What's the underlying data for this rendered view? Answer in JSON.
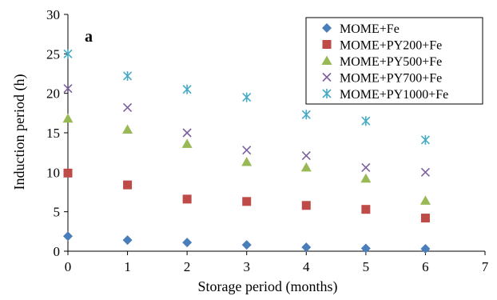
{
  "chart_data": {
    "type": "scatter",
    "panel_label": "a",
    "xlabel": "Storage period (months)",
    "ylabel": "Induction period (h)",
    "xlim": [
      0,
      7
    ],
    "ylim": [
      0,
      30
    ],
    "x_ticks": [
      0,
      1,
      2,
      3,
      4,
      5,
      6,
      7
    ],
    "y_ticks": [
      0,
      5,
      10,
      15,
      20,
      25,
      30
    ],
    "grid": false,
    "legend_position": "top-right",
    "x": [
      0,
      1,
      2,
      3,
      4,
      5,
      6
    ],
    "series": [
      {
        "name": "MOME+Fe",
        "marker": "diamond",
        "color": "#4a7ebb",
        "values": [
          1.9,
          1.4,
          1.1,
          0.8,
          0.5,
          0.35,
          0.3
        ]
      },
      {
        "name": "MOME+PY200+Fe",
        "marker": "square",
        "color": "#be4b48",
        "values": [
          9.9,
          8.4,
          6.6,
          6.3,
          5.8,
          5.3,
          4.2
        ]
      },
      {
        "name": "MOME+PY500+Fe",
        "marker": "triangle",
        "color": "#98b954",
        "values": [
          16.8,
          15.4,
          13.6,
          11.3,
          10.6,
          9.2,
          6.4
        ]
      },
      {
        "name": "MOME+PY700+Fe",
        "marker": "x",
        "color": "#7d60a0",
        "values": [
          20.6,
          18.2,
          15.0,
          12.8,
          12.1,
          10.6,
          10.0
        ]
      },
      {
        "name": "MOME+PY1000+Fe",
        "marker": "star",
        "color": "#46aac5",
        "values": [
          25.0,
          22.2,
          20.5,
          19.5,
          17.3,
          16.5,
          14.1
        ]
      }
    ]
  }
}
